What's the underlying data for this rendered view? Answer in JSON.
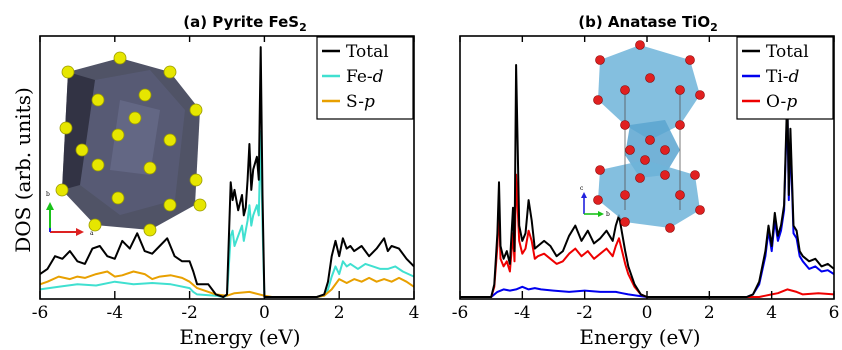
{
  "chart_data": [
    {
      "type": "line",
      "title": "(a) Pyrite FeS",
      "title_sub": "2",
      "xlabel": "Energy (eV)",
      "ylabel": "DOS (arb. units)",
      "xlim": [
        -6,
        4
      ],
      "ylim": [
        0,
        10
      ],
      "xticks": [
        -6,
        -4,
        -2,
        0,
        2,
        4
      ],
      "legend_position": "top-right",
      "legend": [
        {
          "label": "Total",
          "italic_suffix": ""
        },
        {
          "label": "Fe-",
          "italic_suffix": "d"
        },
        {
          "label": "S-",
          "italic_suffix": "p"
        }
      ],
      "series": [
        {
          "color": "#000000",
          "x": [
            -6,
            -5.8,
            -5.6,
            -5.4,
            -5.2,
            -5.0,
            -4.8,
            -4.6,
            -4.4,
            -4.2,
            -4.0,
            -3.8,
            -3.6,
            -3.4,
            -3.2,
            -3.0,
            -2.8,
            -2.6,
            -2.4,
            -2.2,
            -2.0,
            -1.9,
            -1.8,
            -1.5,
            -1.3,
            -1.1,
            -1.0,
            -0.9,
            -0.85,
            -0.8,
            -0.7,
            -0.6,
            -0.55,
            -0.5,
            -0.45,
            -0.4,
            -0.35,
            -0.3,
            -0.2,
            -0.15,
            -0.1,
            -0.05,
            0,
            0.2,
            1.4,
            1.6,
            1.7,
            1.8,
            1.9,
            2.0,
            2.1,
            2.2,
            2.3,
            2.4,
            2.6,
            2.8,
            3.0,
            3.2,
            3.3,
            3.4,
            3.6,
            3.8,
            4.0
          ],
          "y": [
            0.9,
            1.1,
            1.6,
            1.5,
            1.8,
            1.4,
            1.3,
            1.9,
            2.0,
            1.6,
            1.5,
            2.2,
            1.9,
            2.5,
            1.8,
            1.7,
            2.0,
            2.3,
            1.6,
            1.4,
            1.4,
            1.0,
            0.5,
            0.5,
            0.1,
            0,
            0.1,
            4.5,
            3.8,
            4.2,
            3.4,
            4.0,
            3.2,
            3.5,
            4.6,
            6.0,
            4.2,
            5.0,
            5.5,
            4.6,
            9.8,
            4.0,
            0,
            0,
            0,
            0.1,
            0.6,
            1.6,
            2.2,
            1.6,
            2.3,
            1.9,
            2.0,
            1.8,
            2.0,
            1.6,
            1.9,
            2.3,
            1.8,
            2.0,
            1.9,
            1.5,
            1.2
          ]
        },
        {
          "color": "#40e0d0",
          "x": [
            -6,
            -5.5,
            -5,
            -4.5,
            -4,
            -3.5,
            -3,
            -2.5,
            -2,
            -1.9,
            -1.8,
            -1.3,
            -1.1,
            -1.0,
            -0.9,
            -0.85,
            -0.8,
            -0.7,
            -0.6,
            -0.55,
            -0.5,
            -0.45,
            -0.4,
            -0.35,
            -0.3,
            -0.2,
            -0.15,
            -0.1,
            -0.05,
            0,
            0.2,
            1.4,
            1.6,
            1.7,
            1.8,
            1.9,
            2.0,
            2.1,
            2.2,
            2.3,
            2.5,
            2.7,
            2.9,
            3.1,
            3.3,
            3.5,
            3.7,
            4.0
          ],
          "y": [
            0.3,
            0.4,
            0.5,
            0.45,
            0.6,
            0.5,
            0.55,
            0.5,
            0.35,
            0.2,
            0.1,
            0.05,
            0,
            0.05,
            2.4,
            2.6,
            2.0,
            2.4,
            2.8,
            2.2,
            2.6,
            3.0,
            3.6,
            2.8,
            3.2,
            3.6,
            3.2,
            6.5,
            2.8,
            0,
            0,
            0,
            0.05,
            0.3,
            0.8,
            1.2,
            0.9,
            1.4,
            1.2,
            1.3,
            1.1,
            1.3,
            1.2,
            1.1,
            1.1,
            1.2,
            1.0,
            0.8
          ]
        },
        {
          "color": "#e8a000",
          "x": [
            -6,
            -5.8,
            -5.5,
            -5.2,
            -5,
            -4.8,
            -4.5,
            -4.2,
            -4,
            -3.8,
            -3.5,
            -3.2,
            -3,
            -2.8,
            -2.5,
            -2.2,
            -2,
            -1.8,
            -1.3,
            -1.0,
            -0.8,
            -0.4,
            0,
            0.2,
            1.4,
            1.6,
            1.8,
            2.0,
            2.2,
            2.4,
            2.6,
            2.8,
            3.0,
            3.2,
            3.4,
            3.6,
            3.8,
            4.0
          ],
          "y": [
            0.5,
            0.6,
            0.8,
            0.7,
            0.8,
            0.75,
            0.9,
            1.0,
            0.8,
            0.85,
            1.0,
            0.9,
            0.7,
            0.8,
            0.85,
            0.75,
            0.6,
            0.35,
            0.1,
            0.05,
            0.15,
            0.2,
            0.05,
            0,
            0,
            0.05,
            0.3,
            0.7,
            0.55,
            0.7,
            0.6,
            0.75,
            0.6,
            0.7,
            0.6,
            0.75,
            0.6,
            0.4
          ]
        }
      ]
    },
    {
      "type": "line",
      "title": "(b) Anatase TiO",
      "title_sub": "2",
      "xlabel": "Energy (eV)",
      "ylabel": "",
      "xlim": [
        -6,
        6
      ],
      "ylim": [
        0,
        10
      ],
      "xticks": [
        -6,
        -4,
        -2,
        0,
        2,
        4,
        6
      ],
      "legend_position": "top-right",
      "legend": [
        {
          "label": "Total",
          "italic_suffix": ""
        },
        {
          "label": "Ti-",
          "italic_suffix": "d"
        },
        {
          "label": "O-",
          "italic_suffix": "p"
        }
      ],
      "series": [
        {
          "color": "#000000",
          "x": [
            -6,
            -5.0,
            -4.9,
            -4.8,
            -4.75,
            -4.7,
            -4.6,
            -4.5,
            -4.4,
            -4.3,
            -4.25,
            -4.2,
            -4.1,
            -4.0,
            -3.9,
            -3.8,
            -3.7,
            -3.6,
            -3.5,
            -3.3,
            -3.1,
            -2.9,
            -2.7,
            -2.5,
            -2.3,
            -2.1,
            -1.9,
            -1.7,
            -1.5,
            -1.3,
            -1.1,
            -1.0,
            -0.9,
            -0.8,
            -0.7,
            -0.6,
            -0.4,
            -0.2,
            0,
            0.2,
            3.2,
            3.4,
            3.6,
            3.8,
            3.9,
            4.0,
            4.1,
            4.2,
            4.3,
            4.4,
            4.5,
            4.55,
            4.6,
            4.7,
            4.8,
            4.9,
            5.0,
            5.2,
            5.4,
            5.6,
            5.8,
            6.0
          ],
          "y": [
            0,
            0,
            0.5,
            2.5,
            4.5,
            2.0,
            1.5,
            1.8,
            1.3,
            3.5,
            1.8,
            9.1,
            2.8,
            2.2,
            2.5,
            3.8,
            3.0,
            1.9,
            2.0,
            2.2,
            2.0,
            1.6,
            1.8,
            2.4,
            2.8,
            2.2,
            2.6,
            2.1,
            2.3,
            2.6,
            2.2,
            2.8,
            3.2,
            2.5,
            1.8,
            1.2,
            0.5,
            0.1,
            0,
            0,
            0,
            0.1,
            0.6,
            1.8,
            2.8,
            2.0,
            3.3,
            2.4,
            2.8,
            3.6,
            8.0,
            4.0,
            6.6,
            2.8,
            2.6,
            1.8,
            1.6,
            1.4,
            1.5,
            1.2,
            1.3,
            1.1
          ]
        },
        {
          "color": "#0000ee",
          "x": [
            -6,
            -5.0,
            -4.8,
            -4.6,
            -4.4,
            -4.2,
            -4.0,
            -3.8,
            -3.6,
            -3.4,
            -3.0,
            -2.5,
            -2.0,
            -1.5,
            -1.0,
            -0.8,
            -0.6,
            -0.3,
            0,
            0.2,
            3.2,
            3.4,
            3.6,
            3.8,
            3.9,
            4.0,
            4.1,
            4.2,
            4.3,
            4.4,
            4.5,
            4.55,
            4.6,
            4.7,
            4.8,
            4.9,
            5.0,
            5.2,
            5.4,
            5.6,
            5.8,
            6.0
          ],
          "y": [
            0,
            0,
            0.2,
            0.3,
            0.25,
            0.3,
            0.4,
            0.3,
            0.35,
            0.3,
            0.25,
            0.2,
            0.25,
            0.2,
            0.2,
            0.15,
            0.1,
            0.05,
            0,
            0,
            0,
            0.1,
            0.5,
            1.6,
            2.6,
            1.8,
            3.0,
            2.2,
            2.6,
            3.4,
            7.6,
            3.8,
            6.2,
            2.5,
            2.3,
            1.6,
            1.4,
            1.1,
            1.2,
            1.0,
            1.05,
            0.9
          ]
        },
        {
          "color": "#ee0000",
          "x": [
            -6,
            -5.0,
            -4.9,
            -4.8,
            -4.75,
            -4.7,
            -4.6,
            -4.5,
            -4.4,
            -4.3,
            -4.25,
            -4.2,
            -4.1,
            -4.0,
            -3.9,
            -3.8,
            -3.7,
            -3.6,
            -3.5,
            -3.3,
            -3.1,
            -2.9,
            -2.7,
            -2.5,
            -2.3,
            -2.1,
            -1.9,
            -1.7,
            -1.5,
            -1.3,
            -1.1,
            -1.0,
            -0.9,
            -0.8,
            -0.7,
            -0.6,
            -0.4,
            -0.2,
            0,
            0.2,
            3.6,
            3.8,
            4.0,
            4.2,
            4.5,
            4.8,
            5.0,
            5.5,
            6.0
          ],
          "y": [
            0,
            0,
            0.4,
            2.0,
            3.6,
            1.5,
            1.2,
            1.4,
            1.0,
            2.5,
            1.4,
            4.8,
            2.2,
            1.7,
            1.9,
            2.6,
            2.2,
            1.5,
            1.6,
            1.7,
            1.5,
            1.3,
            1.4,
            1.7,
            1.9,
            1.6,
            1.8,
            1.5,
            1.7,
            1.9,
            1.6,
            2.0,
            2.3,
            1.8,
            1.3,
            0.9,
            0.4,
            0.1,
            0,
            0,
            0,
            0.05,
            0.1,
            0.15,
            0.3,
            0.2,
            0.1,
            0.15,
            0.1
          ]
        }
      ]
    }
  ]
}
